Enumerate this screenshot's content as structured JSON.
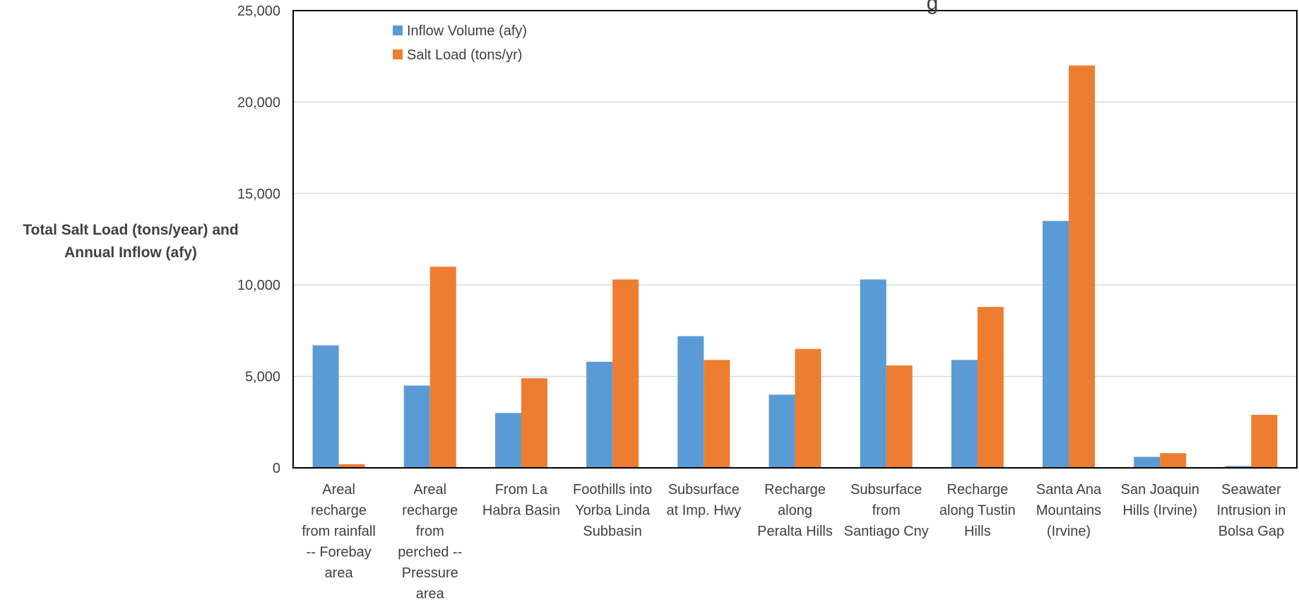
{
  "chart_data": {
    "type": "bar",
    "title_fragment": "g",
    "ylabel_lines": [
      "Total Salt Load (tons/year) and",
      "Annual Inflow (afy)"
    ],
    "xlabel": "",
    "ylim": [
      0,
      25000
    ],
    "yticks": [
      0,
      5000,
      10000,
      15000,
      20000,
      25000
    ],
    "ytick_labels": [
      "0",
      "5,000",
      "10,000",
      "15,000",
      "20,000",
      "25,000"
    ],
    "grid": true,
    "legend_position": "top-left",
    "categories": [
      [
        "Areal",
        "recharge",
        "from rainfall",
        "-- Forebay",
        "area"
      ],
      [
        "Areal",
        "recharge",
        "from",
        "perched --",
        "Pressure",
        "area"
      ],
      [
        "From La",
        "Habra Basin"
      ],
      [
        "Foothills into",
        "Yorba Linda",
        "Subbasin"
      ],
      [
        "Subsurface",
        "at Imp. Hwy"
      ],
      [
        "Recharge",
        "along",
        "Peralta Hills"
      ],
      [
        "Subsurface",
        "from",
        "Santiago Cny"
      ],
      [
        "Recharge",
        "along Tustin",
        "Hills"
      ],
      [
        "Santa Ana",
        "Mountains",
        "(Irvine)"
      ],
      [
        "San Joaquin",
        "Hills (Irvine)"
      ],
      [
        "Seawater",
        "Intrusion in",
        "Bolsa Gap"
      ]
    ],
    "series": [
      {
        "name": "Inflow Volume (afy)",
        "color": "#5b9bd5",
        "values": [
          6700,
          4500,
          3000,
          5800,
          7200,
          4000,
          10300,
          5900,
          13500,
          600,
          100
        ]
      },
      {
        "name": "Salt Load (tons/yr)",
        "color": "#ed7d31",
        "values": [
          200,
          11000,
          4900,
          10300,
          5900,
          6500,
          5600,
          8800,
          22000,
          800,
          2900
        ]
      }
    ]
  }
}
